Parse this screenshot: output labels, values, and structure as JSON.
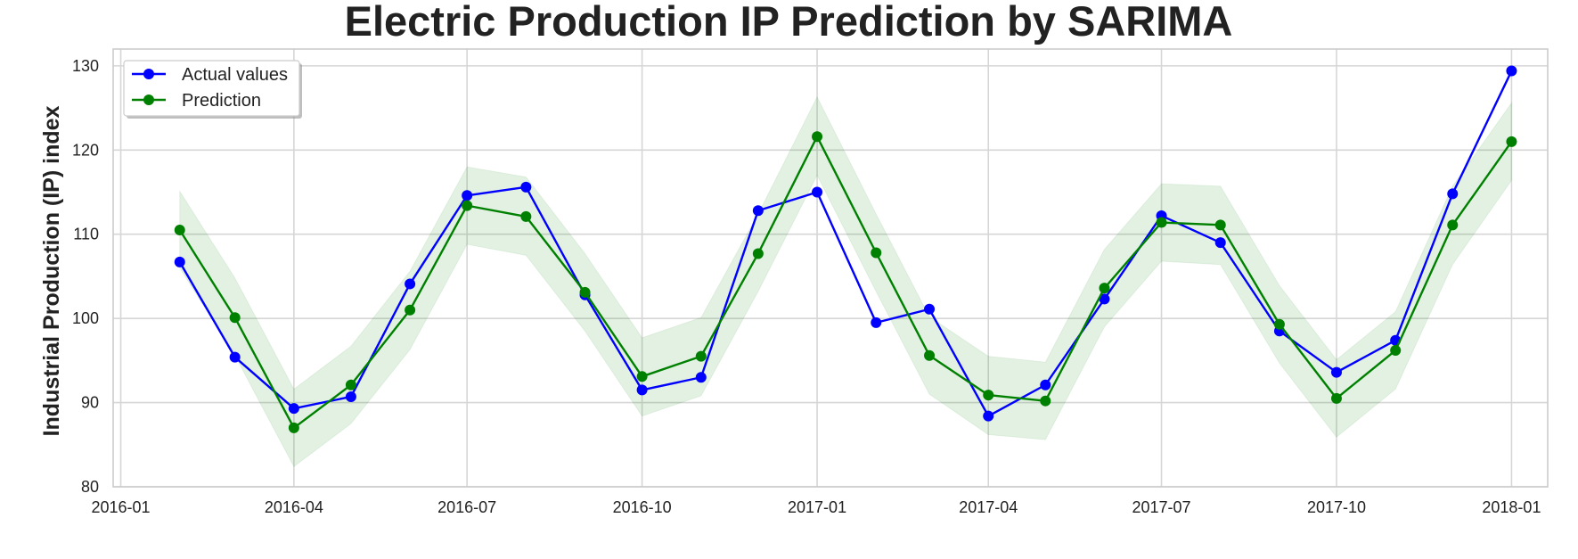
{
  "chart_data": {
    "type": "line",
    "title": "Electric Production IP Prediction by SARIMA",
    "xlabel": "",
    "ylabel": "Industrial Production (IP) index",
    "ylim": [
      80,
      132
    ],
    "xlim": [
      "2015-12-28",
      "2018-01-20"
    ],
    "yticks": [
      80,
      90,
      100,
      110,
      120,
      130
    ],
    "xticks": [
      "2016-01",
      "2016-04",
      "2016-07",
      "2016-10",
      "2017-01",
      "2017-04",
      "2017-07",
      "2017-10",
      "2018-01"
    ],
    "grid": true,
    "legend_position": "top-left",
    "x": [
      "2016-02-01",
      "2016-03-01",
      "2016-04-01",
      "2016-05-01",
      "2016-06-01",
      "2016-07-01",
      "2016-08-01",
      "2016-09-01",
      "2016-10-01",
      "2016-11-01",
      "2016-12-01",
      "2017-01-01",
      "2017-02-01",
      "2017-03-01",
      "2017-04-01",
      "2017-05-01",
      "2017-06-01",
      "2017-07-01",
      "2017-08-01",
      "2017-09-01",
      "2017-10-01",
      "2017-11-01",
      "2017-12-01",
      "2018-01-01"
    ],
    "series": [
      {
        "name": "Actual values",
        "color": "#0000ff",
        "values": [
          106.7,
          95.4,
          89.3,
          90.7,
          104.1,
          114.6,
          115.6,
          102.8,
          91.5,
          93.0,
          112.8,
          115.0,
          99.5,
          101.1,
          88.4,
          92.1,
          102.3,
          112.2,
          109.0,
          98.5,
          93.6,
          97.4,
          114.8,
          129.4
        ]
      },
      {
        "name": "Prediction",
        "color": "#008000",
        "values": [
          110.5,
          100.1,
          87.0,
          92.1,
          101.0,
          113.4,
          112.1,
          103.1,
          93.1,
          95.5,
          107.7,
          121.6,
          107.8,
          95.6,
          90.9,
          90.2,
          103.6,
          111.4,
          111.1,
          99.3,
          90.5,
          96.2,
          111.1,
          121.0
        ]
      }
    ],
    "confidence_band": {
      "color": "#008000",
      "lower": [
        106.0,
        95.6,
        82.4,
        87.5,
        96.3,
        108.8,
        107.5,
        98.5,
        88.4,
        90.8,
        103.2,
        117.0,
        103.2,
        91.0,
        86.2,
        85.6,
        99.0,
        106.8,
        106.4,
        94.7,
        85.9,
        91.6,
        106.4,
        116.4
      ],
      "upper": [
        115.1,
        104.8,
        91.6,
        96.7,
        105.6,
        118.0,
        116.8,
        107.7,
        97.7,
        100.1,
        112.4,
        126.3,
        112.4,
        100.2,
        95.5,
        94.8,
        108.2,
        116.0,
        115.7,
        103.9,
        95.1,
        100.8,
        115.7,
        125.6
      ]
    }
  }
}
